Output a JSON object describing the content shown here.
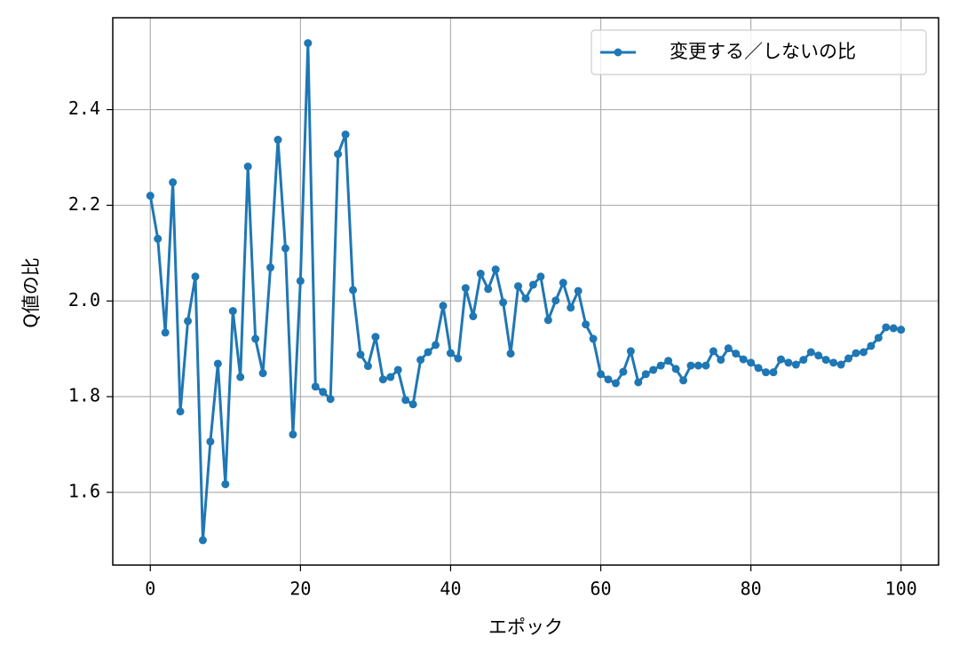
{
  "chart_data": {
    "type": "line",
    "xlabel": "エポック",
    "ylabel": "Q値の比",
    "x": [
      0,
      1,
      2,
      3,
      4,
      5,
      6,
      7,
      8,
      9,
      10,
      11,
      12,
      13,
      14,
      15,
      16,
      17,
      18,
      19,
      20,
      21,
      22,
      23,
      24,
      25,
      26,
      27,
      28,
      29,
      30,
      31,
      32,
      33,
      34,
      35,
      36,
      37,
      38,
      39,
      40,
      41,
      42,
      43,
      44,
      45,
      46,
      47,
      48,
      49,
      50,
      51,
      52,
      53,
      54,
      55,
      56,
      57,
      58,
      59,
      60,
      61,
      62,
      63,
      64,
      65,
      66,
      67,
      68,
      69,
      70,
      71,
      72,
      73,
      74,
      75,
      76,
      77,
      78,
      79,
      80,
      81,
      82,
      83,
      84,
      85,
      86,
      87,
      88,
      89,
      90,
      91,
      92,
      93,
      94,
      95,
      96,
      97,
      98,
      99,
      100
    ],
    "series": [
      {
        "name": "変更する／しないの比",
        "color": "#1f77b4",
        "values": [
          2.22,
          2.13,
          1.934,
          2.248,
          1.769,
          1.958,
          2.051,
          1.5,
          1.706,
          1.869,
          1.617,
          1.979,
          1.841,
          2.281,
          1.921,
          1.849,
          2.07,
          2.337,
          2.11,
          1.721,
          2.042,
          2.539,
          1.821,
          1.81,
          1.795,
          2.307,
          2.348,
          2.023,
          1.888,
          1.864,
          1.925,
          1.836,
          1.841,
          1.856,
          1.793,
          1.784,
          1.877,
          1.893,
          1.908,
          1.99,
          1.891,
          1.88,
          2.027,
          1.968,
          2.057,
          2.025,
          2.066,
          1.997,
          1.89,
          2.031,
          2.005,
          2.034,
          2.051,
          1.96,
          2.001,
          2.038,
          1.986,
          2.021,
          1.951,
          1.921,
          1.847,
          1.836,
          1.828,
          1.852,
          1.895,
          1.83,
          1.847,
          1.856,
          1.865,
          1.875,
          1.858,
          1.834,
          1.865,
          1.865,
          1.865,
          1.895,
          1.877,
          1.901,
          1.89,
          1.878,
          1.871,
          1.86,
          1.851,
          1.851,
          1.878,
          1.871,
          1.867,
          1.877,
          1.893,
          1.886,
          1.877,
          1.871,
          1.867,
          1.88,
          1.891,
          1.893,
          1.906,
          1.923,
          1.945,
          1.943,
          1.94
        ]
      }
    ],
    "xlim": [
      -5,
      105
    ],
    "ylim": [
      1.448,
      2.592
    ],
    "xticks": [
      0,
      20,
      40,
      60,
      80,
      100
    ],
    "yticks": [
      1.6,
      1.8,
      {
        "value": 2,
        "label": "2.0"
      },
      2.2,
      2.4
    ],
    "grid": true,
    "legend": "upper right"
  }
}
